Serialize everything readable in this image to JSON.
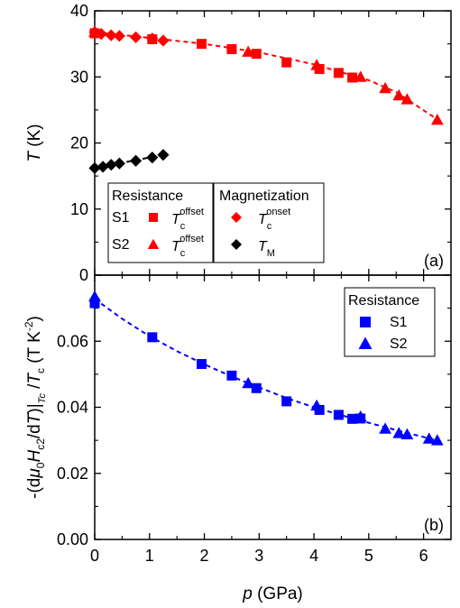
{
  "chart_data": [
    {
      "panel": "(a)",
      "type": "scatter",
      "xlabel": "p (GPa)",
      "ylabel": "T (K)",
      "xlim": [
        0,
        6.5
      ],
      "ylim": [
        0,
        40
      ],
      "yticks": [
        "0",
        "10",
        "20",
        "30",
        "40"
      ],
      "legend": {
        "placement": "bottom-left",
        "groups": [
          {
            "title": "Resistance",
            "entries": [
              {
                "sample": "S1",
                "marker": "square",
                "color": "#ff0000",
                "label_main": "T",
                "label_sub": "c",
                "label_sup": "offset"
              },
              {
                "sample": "S2",
                "marker": "triangle",
                "color": "#ff0000",
                "label_main": "T",
                "label_sub": "c",
                "label_sup": "offset"
              }
            ]
          },
          {
            "title": "Magnetization",
            "entries": [
              {
                "sample": "",
                "marker": "diamond",
                "color": "#ff0000",
                "label_main": "T",
                "label_sub": "c",
                "label_sup": "onset"
              },
              {
                "sample": "",
                "marker": "diamond",
                "color": "#000000",
                "label_main": "T",
                "label_sub": "M",
                "label_sup": ""
              }
            ]
          }
        ]
      },
      "series": [
        {
          "marker": "diamond",
          "color": "#ff0000",
          "x": [
            0.0,
            0.12,
            0.3,
            0.45,
            0.75,
            1.05,
            1.25
          ],
          "y": [
            36.8,
            36.5,
            36.3,
            36.2,
            36.0,
            35.8,
            35.5
          ]
        },
        {
          "marker": "square",
          "color": "#ff0000",
          "x": [
            0.0,
            1.05,
            1.95,
            2.5,
            2.95,
            3.5,
            4.1,
            4.45,
            4.7
          ],
          "y": [
            36.6,
            35.7,
            35.0,
            34.2,
            33.5,
            32.2,
            31.2,
            30.6,
            29.9
          ]
        },
        {
          "marker": "triangle",
          "color": "#ff0000",
          "x": [
            0.0,
            2.8,
            4.05,
            4.85,
            5.3,
            5.55,
            5.7,
            6.25
          ],
          "y": [
            36.8,
            33.8,
            31.8,
            30.0,
            28.3,
            27.2,
            26.6,
            23.5
          ]
        },
        {
          "marker": "diamond",
          "color": "#000000",
          "x": [
            0.0,
            0.15,
            0.3,
            0.45,
            0.75,
            1.05,
            1.25
          ],
          "y": [
            16.2,
            16.4,
            16.7,
            16.9,
            17.3,
            17.8,
            18.2
          ]
        }
      ],
      "fit_lines": [
        {
          "color": "#ff0000",
          "style": "dashed",
          "x": [
            0,
            1,
            2,
            3,
            4,
            5,
            5.5,
            6.3
          ],
          "y": [
            36.8,
            35.9,
            35.0,
            33.7,
            31.9,
            29.5,
            27.7,
            23.3
          ]
        },
        {
          "color": "#000000",
          "style": "dashed",
          "x": [
            0,
            1.25
          ],
          "y": [
            16.2,
            18.2
          ]
        }
      ],
      "annotation": "(a)"
    },
    {
      "panel": "(b)",
      "type": "scatter",
      "xlabel": "p (GPa)",
      "ylabel": "-(dμ0Hc2/dT)|Tc /Tc (T K-2)",
      "xlim": [
        0,
        6.5
      ],
      "ylim": [
        0,
        0.08
      ],
      "xticks": [
        "0",
        "1",
        "2",
        "3",
        "4",
        "5",
        "6"
      ],
      "yticks": [
        "0.00",
        "0.02",
        "0.04",
        "0.06"
      ],
      "legend": {
        "placement": "top-right",
        "title": "Resistance",
        "entries": [
          {
            "label": "S1",
            "marker": "square",
            "color": "#0000ff"
          },
          {
            "label": "S2",
            "marker": "triangle",
            "color": "#0000ff"
          }
        ]
      },
      "series": [
        {
          "name": "S1",
          "marker": "square",
          "color": "#0000ff",
          "x": [
            0.0,
            1.05,
            1.95,
            2.5,
            2.95,
            3.5,
            4.1,
            4.45,
            4.7,
            4.85
          ],
          "y": [
            0.0715,
            0.0612,
            0.0531,
            0.0496,
            0.0458,
            0.0418,
            0.0392,
            0.0377,
            0.0365,
            0.0366
          ]
        },
        {
          "name": "S2",
          "marker": "triangle",
          "color": "#0000ff",
          "x": [
            0.0,
            2.8,
            4.05,
            4.85,
            5.3,
            5.55,
            5.7,
            6.1,
            6.25
          ],
          "y": [
            0.0735,
            0.0473,
            0.0405,
            0.0372,
            0.0335,
            0.0322,
            0.0318,
            0.0305,
            0.03
          ]
        }
      ],
      "fit_lines": [
        {
          "color": "#0000ff",
          "style": "dashed",
          "x": [
            0,
            0.5,
            1,
            1.5,
            2,
            2.5,
            3,
            3.5,
            4,
            4.5,
            5,
            5.5,
            6,
            6.3
          ],
          "y": [
            0.0728,
            0.0668,
            0.0615,
            0.057,
            0.053,
            0.0493,
            0.046,
            0.0428,
            0.04,
            0.0376,
            0.0353,
            0.0331,
            0.031,
            0.0298
          ]
        }
      ],
      "annotation": "(b)"
    }
  ]
}
